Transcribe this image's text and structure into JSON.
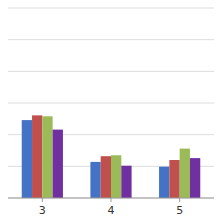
{
  "chart_data": {
    "type": "bar",
    "categories": [
      "3",
      "4",
      "5"
    ],
    "series": [
      {
        "color": "#4472c4",
        "values": [
          0.82,
          0.38,
          0.33
        ]
      },
      {
        "color": "#c0504d",
        "values": [
          0.87,
          0.44,
          0.4
        ]
      },
      {
        "color": "#9bbb59",
        "values": [
          0.86,
          0.45,
          0.52
        ]
      },
      {
        "color": "#7030a0",
        "values": [
          0.72,
          0.34,
          0.42
        ]
      }
    ],
    "ylim": [
      0,
      2.0
    ],
    "yticks": [
      0,
      0.3333333333333333,
      0.6666666666666666,
      1,
      1.3333333333333333,
      1.6666666666666665,
      2
    ],
    "grid": true,
    "tick_labels": "x"
  }
}
